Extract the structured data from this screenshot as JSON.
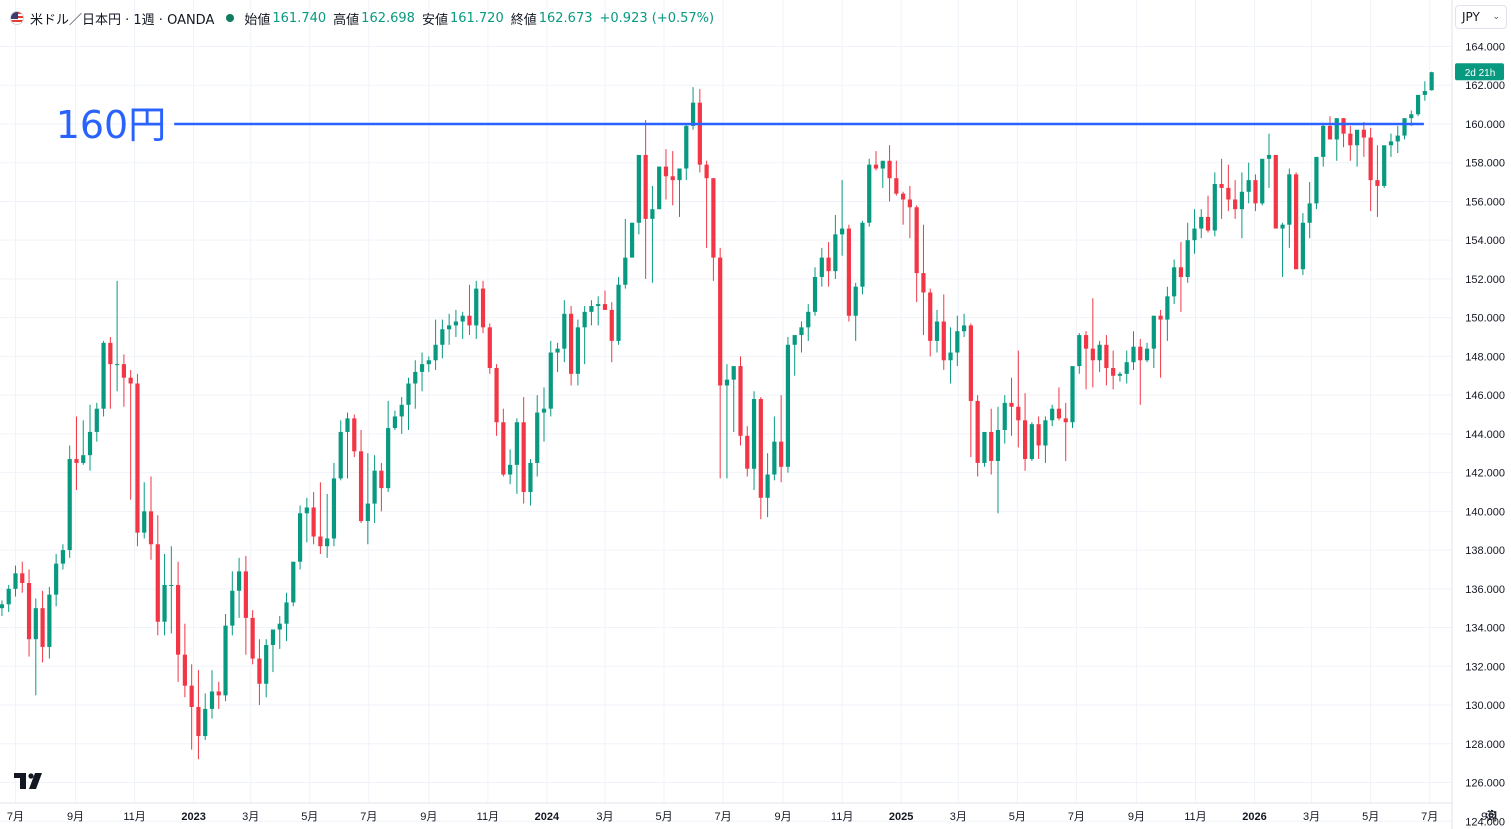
{
  "header": {
    "symbol": "米ドル／日本円 · 1週 · OANDA",
    "open_label": "始値",
    "open_value": "161.740",
    "high_label": "高値",
    "high_value": "162.698",
    "low_label": "安値",
    "low_value": "161.720",
    "close_label": "終値",
    "close_value": "162.673",
    "change": "+0.923 (+0.57%)"
  },
  "currency_button": {
    "label": "JPY"
  },
  "icons": {
    "flag": "us-flag-icon",
    "dropdown": "chevron-down-icon",
    "logo": "tradingview-logo-icon",
    "settings": "gear-icon"
  },
  "colors": {
    "up": "#089981",
    "down": "#f23645",
    "line": "#2962ff",
    "tag": "#089981"
  },
  "chart_data": {
    "type": "candlestick",
    "interval": "1週",
    "ylim": [
      123.6,
      166.4
    ],
    "y_ticks": [
      124,
      126,
      128,
      130,
      132,
      134,
      136,
      138,
      140,
      142,
      144,
      146,
      148,
      150,
      152,
      154,
      156,
      158,
      160,
      162,
      164
    ],
    "x_ticks": [
      {
        "label": "7月",
        "date": "2022-07-01"
      },
      {
        "label": "9月",
        "date": "2022-09-01"
      },
      {
        "label": "11月",
        "date": "2022-11-01"
      },
      {
        "label": "2023",
        "date": "2023-01-01"
      },
      {
        "label": "3月",
        "date": "2023-03-01"
      },
      {
        "label": "5月",
        "date": "2023-05-01"
      },
      {
        "label": "7月",
        "date": "2023-07-01"
      },
      {
        "label": "9月",
        "date": "2023-09-01"
      },
      {
        "label": "11月",
        "date": "2023-11-01"
      },
      {
        "label": "2024",
        "date": "2024-01-01"
      },
      {
        "label": "3月",
        "date": "2024-03-01"
      },
      {
        "label": "5月",
        "date": "2024-05-01"
      },
      {
        "label": "7月",
        "date": "2024-07-01"
      },
      {
        "label": "9月",
        "date": "2024-09-01"
      },
      {
        "label": "11月",
        "date": "2024-11-01"
      },
      {
        "label": "2025",
        "date": "2025-01-01"
      },
      {
        "label": "3月",
        "date": "2025-03-01"
      },
      {
        "label": "5月",
        "date": "2025-05-01"
      },
      {
        "label": "7月",
        "date": "2025-07-01"
      },
      {
        "label": "9月",
        "date": "2025-09-01"
      },
      {
        "label": "11月",
        "date": "2025-11-01"
      },
      {
        "label": "2026",
        "date": "2026-01-01"
      },
      {
        "label": "3月",
        "date": "2026-03-01"
      },
      {
        "label": "5月",
        "date": "2026-05-01"
      },
      {
        "label": "7月",
        "date": "2026-07-01"
      },
      {
        "label": "9月",
        "date": "2026-09-01"
      }
    ],
    "x_range": [
      "2022-06-15",
      "2026-09-23"
    ],
    "first_bar_date": "2022-06-17",
    "bar_interval_days": 7,
    "bars": [
      [
        135,
        135.4,
        134.6,
        135.2
      ],
      [
        135.2,
        136.2,
        134.8,
        136
      ],
      [
        136,
        137.2,
        135.6,
        136.8
      ],
      [
        136.8,
        137.4,
        135.8,
        136.3
      ],
      [
        136.3,
        137,
        132.5,
        133.4
      ],
      [
        133.4,
        135.5,
        130.5,
        135
      ],
      [
        135,
        135.9,
        132.2,
        133
      ],
      [
        133,
        136.1,
        132.4,
        135.7
      ],
      [
        135.7,
        137.8,
        135.1,
        137.3
      ],
      [
        137.3,
        138.3,
        137,
        138
      ],
      [
        138,
        143.4,
        137.6,
        142.7
      ],
      [
        142.7,
        144.9,
        141.1,
        142.5
      ],
      [
        142.5,
        144.7,
        142.4,
        142.9
      ],
      [
        142.9,
        145.5,
        142.1,
        144.1
      ],
      [
        144.1,
        145.6,
        143.6,
        145.3
      ],
      [
        145.3,
        148.8,
        144.9,
        148.7
      ],
      [
        148.7,
        149,
        145.3,
        147.6
      ],
      [
        147.6,
        151.9,
        146.2,
        147.6
      ],
      [
        147.6,
        148.1,
        145.4,
        146.9
      ],
      [
        146.9,
        147.3,
        140.6,
        146.6
      ],
      [
        146.6,
        147.1,
        138.2,
        138.9
      ],
      [
        138.9,
        141.5,
        138.6,
        140
      ],
      [
        140,
        141.8,
        137.5,
        138.3
      ],
      [
        138.3,
        139.8,
        133.6,
        134.3
      ],
      [
        134.3,
        137.8,
        133.6,
        136.2
      ],
      [
        136.2,
        138.2,
        133.7,
        136.2
      ],
      [
        136.2,
        137.4,
        131.2,
        132.6
      ],
      [
        132.6,
        134.2,
        130.4,
        131
      ],
      [
        131,
        132.1,
        127.7,
        129.9
      ],
      [
        129.9,
        131.8,
        127.2,
        128.4
      ],
      [
        128.4,
        130.6,
        128.2,
        129.8
      ],
      [
        129.8,
        131.8,
        129.3,
        130.7
      ],
      [
        130.7,
        131.2,
        129.8,
        130.5
      ],
      [
        130.5,
        134.7,
        130.2,
        134.1
      ],
      [
        134.1,
        136.9,
        133.6,
        135.9
      ],
      [
        135.9,
        137.6,
        134.5,
        136.9
      ],
      [
        136.9,
        137.7,
        132.6,
        134.5
      ],
      [
        134.5,
        134.9,
        132.1,
        132.4
      ],
      [
        132.4,
        133.4,
        130,
        131.1
      ],
      [
        131.1,
        133.4,
        130.4,
        133.1
      ],
      [
        133.1,
        133.7,
        131.7,
        133.9
      ],
      [
        133.9,
        134.6,
        132.9,
        134.2
      ],
      [
        134.2,
        135.8,
        133.3,
        135.3
      ],
      [
        135.3,
        137.3,
        135.1,
        137.4
      ],
      [
        137.4,
        140.3,
        137,
        139.9
      ],
      [
        139.9,
        140.7,
        138.4,
        140.2
      ],
      [
        140.2,
        141,
        138.3,
        138.7
      ],
      [
        138.7,
        141.5,
        137.8,
        138.2
      ],
      [
        138.2,
        140.9,
        137.6,
        138.6
      ],
      [
        138.6,
        142.5,
        138.2,
        141.7
      ],
      [
        141.7,
        144.7,
        141.6,
        144.1
      ],
      [
        144.1,
        145.1,
        141.7,
        144.8
      ],
      [
        144.8,
        145,
        142.8,
        143.1
      ],
      [
        143.1,
        144.2,
        139.4,
        139.5
      ],
      [
        139.5,
        143,
        138.3,
        140.4
      ],
      [
        140.4,
        142.9,
        139.4,
        142.1
      ],
      [
        142.1,
        142.5,
        140,
        141.2
      ],
      [
        141.2,
        145.7,
        141,
        144.3
      ],
      [
        144.3,
        145.2,
        144.2,
        144.9
      ],
      [
        144.9,
        145.9,
        144,
        145.5
      ],
      [
        145.5,
        146.9,
        144.2,
        146.6
      ],
      [
        146.6,
        147.8,
        145.3,
        147.2
      ],
      [
        147.2,
        148.2,
        146.2,
        147.6
      ],
      [
        147.6,
        148,
        147.2,
        147.8
      ],
      [
        147.8,
        149.9,
        147.3,
        148.6
      ],
      [
        148.6,
        149.9,
        147.9,
        149.4
      ],
      [
        149.4,
        150.2,
        148.6,
        149.6
      ],
      [
        149.6,
        150.4,
        149,
        149.8
      ],
      [
        149.8,
        150.3,
        148.9,
        150.1
      ],
      [
        150.1,
        151.7,
        149.1,
        149.6
      ],
      [
        149.6,
        151.9,
        148.9,
        151.5
      ],
      [
        151.5,
        151.9,
        149.2,
        149.5
      ],
      [
        149.5,
        149.7,
        147.1,
        147.4
      ],
      [
        147.4,
        147.6,
        143.9,
        144.6
      ],
      [
        144.6,
        145.3,
        141.8,
        141.9
      ],
      [
        141.9,
        143.2,
        141.4,
        142.4
      ],
      [
        142.4,
        144.8,
        140.9,
        144.6
      ],
      [
        144.6,
        145.9,
        140.4,
        141
      ],
      [
        141,
        142.7,
        140.3,
        142.5
      ],
      [
        142.5,
        146,
        141.8,
        145.1
      ],
      [
        145.1,
        146.4,
        143.6,
        145.3
      ],
      [
        145.3,
        148.8,
        144.9,
        148.2
      ],
      [
        148.2,
        148.7,
        147.2,
        148.4
      ],
      [
        148.4,
        150.9,
        147.7,
        150.2
      ],
      [
        150.2,
        150.6,
        146.5,
        147.1
      ],
      [
        147.1,
        149.9,
        146.5,
        149.5
      ],
      [
        149.5,
        150.6,
        147.6,
        150.3
      ],
      [
        150.3,
        150.9,
        149.6,
        150.6
      ],
      [
        150.6,
        151.1,
        149.6,
        150.7
      ],
      [
        150.7,
        151.4,
        150.4,
        150.4
      ],
      [
        150.4,
        150.8,
        147.7,
        148.8
      ],
      [
        148.8,
        152.1,
        148.6,
        151.7
      ],
      [
        151.7,
        155.1,
        151.5,
        153.1
      ],
      [
        153.1,
        154.9,
        153.1,
        154.9
      ],
      [
        154.9,
        158.4,
        154.3,
        158.4
      ],
      [
        158.4,
        160.2,
        152,
        155.1
      ],
      [
        155.1,
        156.8,
        151.8,
        155.6
      ],
      [
        155.6,
        157.8,
        155.6,
        157.8
      ],
      [
        157.8,
        158.7,
        156.1,
        157.3
      ],
      [
        157.3,
        158.6,
        155.8,
        157.1
      ],
      [
        157.1,
        157.6,
        155.2,
        157.7
      ],
      [
        157.7,
        160,
        157.1,
        159.9
      ],
      [
        159.9,
        161.9,
        159.7,
        161.1
      ],
      [
        161.1,
        161.8,
        157.5,
        157.9
      ],
      [
        157.9,
        158.1,
        153.6,
        157.2
      ],
      [
        157.2,
        157.2,
        151.9,
        153.1
      ],
      [
        153.1,
        153.6,
        141.7,
        146.5
      ],
      [
        146.5,
        147.6,
        141.7,
        146.8
      ],
      [
        146.8,
        147.1,
        144.1,
        147.5
      ],
      [
        147.5,
        148,
        143.4,
        143.9
      ],
      [
        143.9,
        144.4,
        141.8,
        142.2
      ],
      [
        142.2,
        146.2,
        141.1,
        145.8
      ],
      [
        145.8,
        145.9,
        139.6,
        140.7
      ],
      [
        140.7,
        143,
        139.7,
        141.9
      ],
      [
        141.9,
        144.9,
        141.6,
        143.6
      ],
      [
        143.6,
        146,
        141.5,
        142.3
      ],
      [
        142.3,
        149,
        142,
        148.6
      ],
      [
        148.6,
        149.1,
        147,
        149.1
      ],
      [
        149.1,
        149.8,
        148.2,
        149.5
      ],
      [
        149.5,
        150.7,
        148.8,
        150.3
      ],
      [
        150.3,
        152.6,
        150.1,
        152.1
      ],
      [
        152.1,
        153.6,
        151.6,
        153.1
      ],
      [
        153.1,
        153.9,
        151.6,
        152.4
      ],
      [
        152.4,
        155.3,
        152,
        154.3
      ],
      [
        154.3,
        157.1,
        153.2,
        154.6
      ],
      [
        154.6,
        154.8,
        149.8,
        150.1
      ],
      [
        150.1,
        151.8,
        148.8,
        151.6
      ],
      [
        151.6,
        155,
        151.2,
        154.9
      ],
      [
        154.9,
        158.2,
        154.7,
        157.9
      ],
      [
        157.9,
        158.6,
        157.6,
        157.7
      ],
      [
        157.7,
        158.1,
        156.7,
        158.1
      ],
      [
        158.1,
        158.9,
        156,
        157.2
      ],
      [
        157.2,
        158.1,
        156.3,
        156.4
      ],
      [
        156.4,
        156.5,
        154.8,
        156.1
      ],
      [
        156.1,
        156.8,
        154.1,
        155.7
      ],
      [
        155.7,
        155.8,
        150.8,
        152.3
      ],
      [
        152.3,
        154.8,
        149.1,
        151.3
      ],
      [
        151.3,
        151.5,
        148,
        148.8
      ],
      [
        148.8,
        150.4,
        148.2,
        149.8
      ],
      [
        149.8,
        151.2,
        147.3,
        147.8
      ],
      [
        147.8,
        149.5,
        146.6,
        148.2
      ],
      [
        148.2,
        150.1,
        147.5,
        149.3
      ],
      [
        149.3,
        150.2,
        149,
        149.6
      ],
      [
        149.6,
        149.7,
        142.8,
        145.7
      ],
      [
        145.7,
        146,
        141.8,
        142.5
      ],
      [
        142.5,
        143.5,
        142.3,
        144.1
      ],
      [
        144.1,
        145.3,
        141.9,
        142.6
      ],
      [
        142.6,
        145.4,
        139.9,
        144.2
      ],
      [
        144.2,
        146,
        143.5,
        145.6
      ],
      [
        145.6,
        146.9,
        143.9,
        145.4
      ],
      [
        145.4,
        148.3,
        143.3,
        144.7
      ],
      [
        144.7,
        146.1,
        142.1,
        142.7
      ],
      [
        142.7,
        144.6,
        142.6,
        144.5
      ],
      [
        144.5,
        144.9,
        142.7,
        143.4
      ],
      [
        143.4,
        144.9,
        142.5,
        144.7
      ],
      [
        144.7,
        145.5,
        144.4,
        145.3
      ],
      [
        145.3,
        146.4,
        144.7,
        144.8
      ],
      [
        144.8,
        145.6,
        142.6,
        144.6
      ],
      [
        144.6,
        147.2,
        144.3,
        147.5
      ],
      [
        147.5,
        149.2,
        147.1,
        149.1
      ],
      [
        149.1,
        149.3,
        146.3,
        148.4
      ],
      [
        148.4,
        151,
        146.4,
        147.8
      ],
      [
        147.8,
        148.8,
        147.2,
        148.6
      ],
      [
        148.6,
        149.1,
        146.5,
        147.4
      ],
      [
        147.4,
        148.3,
        146.3,
        147
      ],
      [
        147,
        147.2,
        146.7,
        147.1
      ],
      [
        147.1,
        148.3,
        146.6,
        147.7
      ],
      [
        147.7,
        149.3,
        147.3,
        148.5
      ],
      [
        148.5,
        148.9,
        145.5,
        147.8
      ],
      [
        147.8,
        148.7,
        147.7,
        148.4
      ],
      [
        148.4,
        150,
        147.4,
        150.1
      ],
      [
        150.1,
        150.4,
        146.9,
        149.9
      ],
      [
        149.9,
        151.6,
        148.8,
        151.1
      ],
      [
        151.1,
        153,
        150.7,
        152.6
      ],
      [
        152.6,
        153.9,
        150.3,
        152.1
      ],
      [
        152.1,
        154.9,
        151.8,
        154
      ],
      [
        154,
        155.6,
        153.3,
        154.6
      ],
      [
        154.6,
        155.6,
        154.1,
        155.2
      ],
      [
        155.2,
        156.3,
        154.4,
        154.5
      ],
      [
        154.5,
        157.5,
        154.2,
        156.9
      ],
      [
        156.9,
        158.2,
        155.1,
        156.7
      ],
      [
        156.7,
        157.9,
        155.5,
        156.1
      ],
      [
        156.1,
        157.1,
        155.1,
        155.6
      ],
      [
        155.6,
        157.5,
        154.1,
        156.5
      ],
      [
        156.5,
        158,
        155.9,
        157.1
      ],
      [
        157.1,
        157.4,
        155.5,
        155.9
      ],
      [
        155.9,
        158.2,
        155.8,
        158.2
      ],
      [
        158.2,
        159.5,
        156.7,
        158.4
      ],
      [
        158.4,
        158.4,
        155.1,
        154.6
      ],
      [
        154.6,
        154.9,
        152.1,
        154.8
      ],
      [
        154.8,
        157.7,
        153.6,
        157.4
      ],
      [
        157.4,
        157.5,
        152.5,
        152.5
      ],
      [
        152.5,
        155.4,
        152.2,
        154.9
      ],
      [
        154.9,
        157,
        154.1,
        155.9
      ],
      [
        155.9,
        158.1,
        155.6,
        158.3
      ],
      [
        158.3,
        160,
        157.8,
        159.9
      ],
      [
        159.9,
        160.4,
        159.2,
        159.2
      ],
      [
        159.2,
        160.2,
        158.1,
        160.3
      ],
      [
        160.3,
        160.3,
        158.8,
        159.5
      ],
      [
        159.5,
        159.9,
        158.1,
        158.9
      ],
      [
        158.9,
        159.5,
        157.8,
        159.7
      ],
      [
        159.7,
        160.1,
        158.3,
        159.3
      ],
      [
        159.3,
        159.8,
        155.5,
        157.1
      ],
      [
        157.1,
        158.9,
        155.2,
        156.8
      ],
      [
        156.8,
        158.8,
        156.7,
        158.9
      ],
      [
        158.9,
        159.5,
        158.3,
        159.1
      ],
      [
        159.1,
        159.9,
        158.5,
        159.4
      ],
      [
        159.4,
        160.2,
        159.2,
        160.3
      ],
      [
        160.3,
        160.7,
        159.9,
        160.5
      ],
      [
        160.5,
        161.5,
        160.4,
        161.5
      ],
      [
        161.5,
        162.2,
        161.2,
        161.7
      ],
      [
        161.74,
        162.698,
        161.72,
        162.673
      ]
    ],
    "series": [
      {
        "name": "米ドル／日本円",
        "type": "candlestick"
      }
    ],
    "annotation": {
      "label": "160円",
      "value": 160,
      "start_date": "2022-12-12",
      "end_date": "2026-06-25"
    },
    "last_price_tag": {
      "value": 162.673,
      "countdown": "2d 21h"
    },
    "grid": true
  }
}
